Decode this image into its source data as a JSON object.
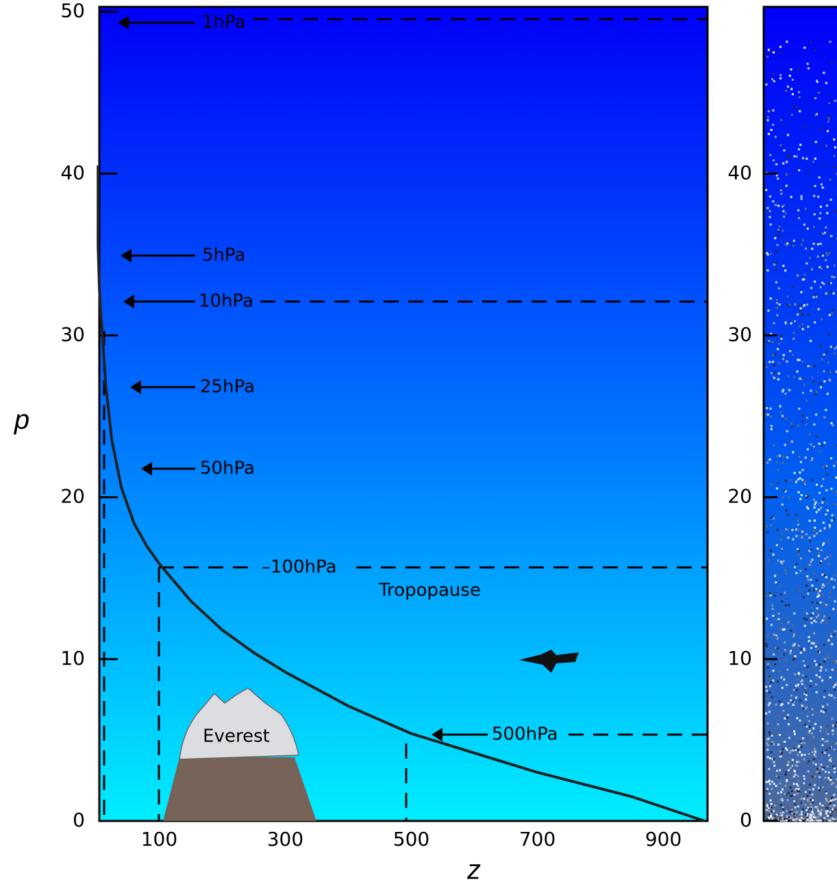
{
  "chart_data": [
    {
      "type": "line",
      "xlabel": "z",
      "ylabel": "p",
      "color": "#222222",
      "x": [
        965,
        850,
        700,
        600,
        500,
        400,
        300,
        250,
        200,
        150,
        100,
        80,
        60,
        40,
        25,
        15,
        10,
        7,
        5,
        3,
        3
      ],
      "values": [
        0,
        1.5,
        3,
        4.2,
        5.4,
        7.1,
        9.2,
        10.4,
        11.8,
        13.6,
        15.9,
        17,
        18.4,
        20.6,
        23.5,
        27,
        30,
        31.5,
        33,
        35.5,
        40.5
      ],
      "xlim": [
        5,
        970
      ],
      "xticks": [
        100,
        300,
        500,
        700,
        900
      ],
      "ylim": [
        0,
        50.3
      ],
      "yticks": [
        0,
        10,
        20,
        30,
        40,
        50
      ],
      "annotations": [
        "1hPa",
        "5hPa",
        "10hPa",
        "25hPa",
        "50hPa",
        "–100hPa",
        "Tropopause",
        "500hPa",
        "Everest"
      ]
    },
    {
      "type": "density",
      "ylim": [
        0,
        50.3
      ],
      "yticks": [
        0,
        10,
        20,
        30,
        40
      ]
    }
  ]
}
